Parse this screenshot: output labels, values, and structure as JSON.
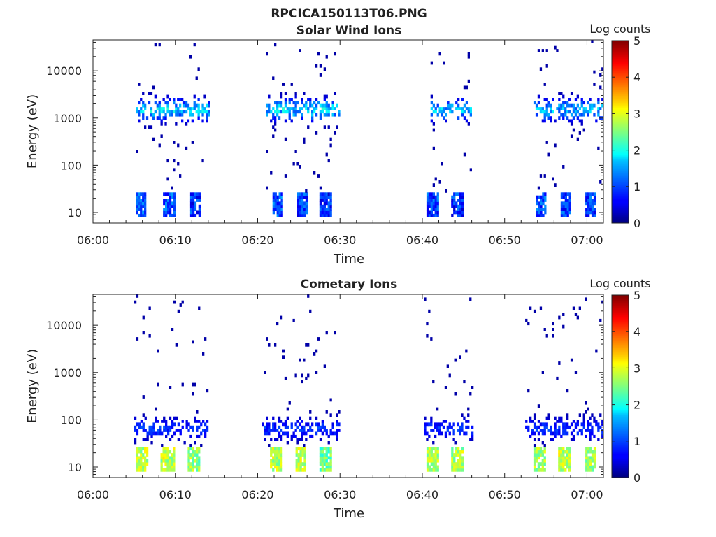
{
  "figure_title": "RPCICA150113T06.PNG",
  "chart_data": [
    {
      "type": "heatmap",
      "title": "Solar Wind Ions",
      "xlabel": "Time",
      "ylabel": "Energy (eV)",
      "x_ticks": [
        "06:00",
        "06:10",
        "06:20",
        "06:30",
        "06:40",
        "06:50",
        "07:00"
      ],
      "x_range_minutes": [
        0,
        62
      ],
      "y_scale": "log",
      "y_ticks": [
        "10",
        "100",
        "1000",
        "10000"
      ],
      "y_range": [
        6,
        45000
      ],
      "colorbar": {
        "label": "Log counts",
        "ticks": [
          "0",
          "1",
          "2",
          "3",
          "4",
          "5"
        ],
        "range": [
          0,
          5
        ],
        "colormap": "jet"
      },
      "grid": false,
      "bursts": [
        {
          "t_start": 5.2,
          "t_end": 14.0,
          "low_band": [
            [
              5.2,
              6.4,
              1.0
            ],
            [
              8.5,
              9.8,
              1.0
            ],
            [
              11.8,
              13.0,
              0.8
            ]
          ],
          "peak_energy": 1400,
          "peak_log": 1.8
        },
        {
          "t_start": 21.0,
          "t_end": 30.0,
          "low_band": [
            [
              21.8,
              23.0,
              1.0
            ],
            [
              24.8,
              26.0,
              0.9
            ],
            [
              27.5,
              28.8,
              0.8
            ]
          ],
          "peak_energy": 1400,
          "peak_log": 1.8
        },
        {
          "t_start": 41.0,
          "t_end": 46.0,
          "low_band": [
            [
              40.5,
              41.8,
              0.9
            ],
            [
              43.5,
              44.8,
              0.8
            ]
          ],
          "peak_energy": 1400,
          "peak_log": 1.6
        },
        {
          "t_start": 53.5,
          "t_end": 62.0,
          "low_band": [
            [
              53.8,
              55.0,
              1.0
            ],
            [
              56.8,
              58.0,
              0.9
            ],
            [
              59.8,
              61.0,
              0.9
            ]
          ],
          "peak_energy": 1400,
          "peak_log": 1.6
        }
      ]
    },
    {
      "type": "heatmap",
      "title": "Cometary Ions",
      "xlabel": "Time",
      "ylabel": "Energy (eV)",
      "x_ticks": [
        "06:00",
        "06:10",
        "06:20",
        "06:30",
        "06:40",
        "06:50",
        "07:00"
      ],
      "x_range_minutes": [
        0,
        62
      ],
      "y_scale": "log",
      "y_ticks": [
        "10",
        "100",
        "1000",
        "10000"
      ],
      "y_range": [
        6,
        45000
      ],
      "colorbar": {
        "label": "Log counts",
        "ticks": [
          "0",
          "1",
          "2",
          "3",
          "4",
          "5"
        ],
        "range": [
          0,
          5
        ],
        "colormap": "jet"
      },
      "grid": false,
      "bursts": [
        {
          "t_start": 5.0,
          "t_end": 14.0,
          "low_band": [
            [
              5.2,
              6.6,
              2.8
            ],
            [
              8.2,
              9.8,
              2.8
            ],
            [
              11.5,
              12.8,
              2.6
            ]
          ],
          "peak_energy": 60,
          "peak_log": 0.8
        },
        {
          "t_start": 20.5,
          "t_end": 30.0,
          "low_band": [
            [
              21.5,
              22.8,
              2.8
            ],
            [
              24.6,
              25.8,
              2.8
            ],
            [
              27.5,
              28.8,
              2.4
            ]
          ],
          "peak_energy": 60,
          "peak_log": 0.8
        },
        {
          "t_start": 40.2,
          "t_end": 46.0,
          "low_band": [
            [
              40.5,
              41.8,
              2.8
            ],
            [
              43.5,
              44.8,
              2.7
            ]
          ],
          "peak_energy": 60,
          "peak_log": 0.8
        },
        {
          "t_start": 52.5,
          "t_end": 62.0,
          "low_band": [
            [
              53.5,
              54.8,
              2.7
            ],
            [
              56.5,
              57.8,
              2.8
            ],
            [
              59.8,
              61.0,
              2.7
            ]
          ],
          "peak_energy": 60,
          "peak_log": 0.8
        }
      ]
    }
  ]
}
